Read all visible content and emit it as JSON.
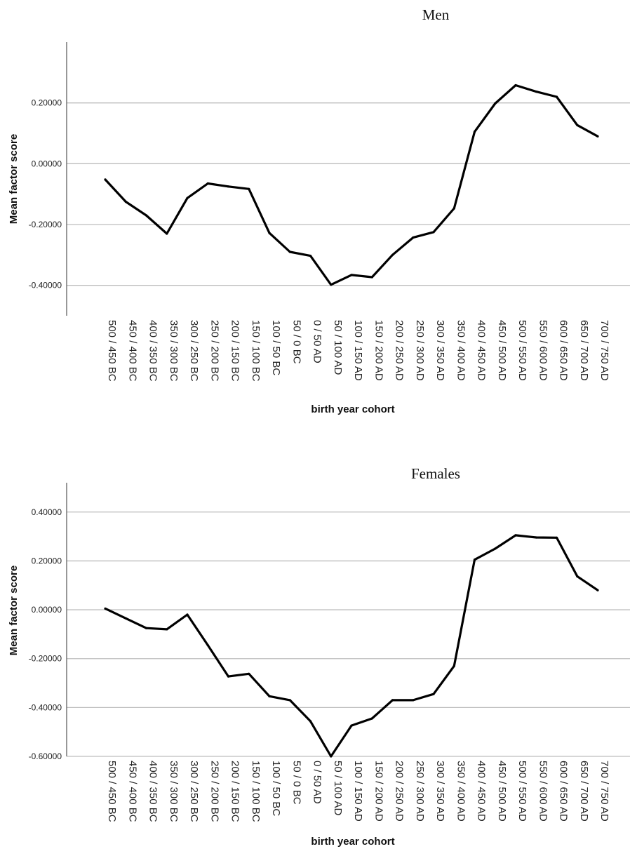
{
  "chart_data": [
    {
      "type": "line",
      "title": "Men",
      "xlabel": "birth year cohort",
      "ylabel": "Mean factor score",
      "categories": [
        "500 / 450 BC",
        "450 / 400 BC",
        "400 / 350 BC",
        "350 / 300 BC",
        "300 / 250 BC",
        "250 / 200 BC",
        "200 / 150 BC",
        "150 / 100 BC",
        "100 / 50 BC",
        "50 / 0 BC",
        "0 / 50 AD",
        "50 / 100 AD",
        "100 / 150 AD",
        "150 / 200 AD",
        "200 / 250 AD",
        "250 / 300 AD",
        "300 / 350 AD",
        "350 / 400 AD",
        "400 / 450 AD",
        "450 / 500 AD",
        "500 / 550 AD",
        "550 / 600 AD",
        "600 / 650 AD",
        "650 / 700 AD",
        "700 / 750 AD"
      ],
      "series": [
        {
          "values": [
            -0.052,
            -0.125,
            -0.17,
            -0.23,
            -0.113,
            -0.065,
            -0.075,
            -0.083,
            -0.228,
            -0.29,
            -0.303,
            -0.398,
            -0.366,
            -0.373,
            -0.3,
            -0.243,
            -0.225,
            -0.147,
            0.105,
            0.198,
            0.258,
            0.237,
            0.22,
            0.127,
            0.09
          ]
        }
      ],
      "ylim": [
        -0.5,
        0.4
      ],
      "yticks": [
        0.2,
        0.0,
        -0.2,
        -0.4
      ],
      "ytick_labels": [
        "0.20000",
        "0.00000",
        "-0.20000",
        "-0.40000"
      ],
      "grid": "horizontal"
    },
    {
      "type": "line",
      "title": "Females",
      "xlabel": "birth year cohort",
      "ylabel": "Mean factor score",
      "categories": [
        "500 / 450 BC",
        "450 / 400 BC",
        "400 / 350 BC",
        "350 / 300 BC",
        "300 / 250 BC",
        "250 / 200 BC",
        "200 / 150 BC",
        "150 / 100 BC",
        "100 / 50 BC",
        "50 / 0 BC",
        "0 / 50 AD",
        "50 / 100 AD",
        "100 / 150 AD",
        "150 / 200 AD",
        "200 / 250 AD",
        "250 / 300 AD",
        "300 / 350 AD",
        "350 / 400 AD",
        "400 / 450 AD",
        "450 / 500 AD",
        "500 / 550 AD",
        "550 / 600 AD",
        "600 / 650 AD",
        "650 / 700 AD",
        "700 / 750 AD"
      ],
      "series": [
        {
          "values": [
            0.005,
            -0.035,
            -0.075,
            -0.08,
            -0.02,
            -0.145,
            -0.273,
            -0.262,
            -0.354,
            -0.37,
            -0.456,
            -0.6,
            -0.474,
            -0.445,
            -0.37,
            -0.37,
            -0.345,
            -0.23,
            0.205,
            0.25,
            0.305,
            0.296,
            0.295,
            0.137,
            0.08
          ]
        }
      ],
      "ylim": [
        -0.6,
        0.52
      ],
      "yticks": [
        0.4,
        0.2,
        0.0,
        -0.2,
        -0.4,
        -0.6
      ],
      "ytick_labels": [
        "0.40000",
        "0.20000",
        "0.00000",
        "-0.20000",
        "-0.40000",
        "-0.60000"
      ],
      "grid": "horizontal"
    }
  ]
}
